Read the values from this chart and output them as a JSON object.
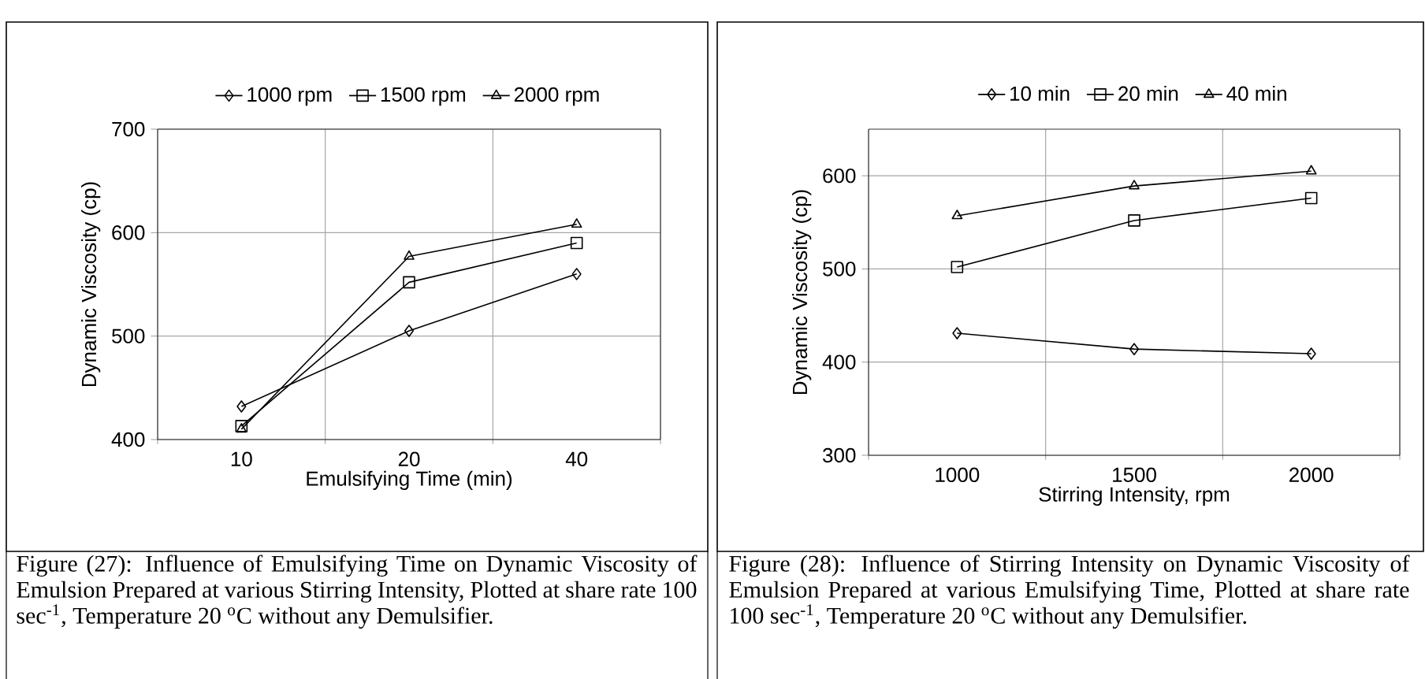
{
  "chart_data": [
    {
      "type": "line",
      "xlabel": "Emulsifying Time (min)",
      "ylabel": "Dynamic Viscosity (cp)",
      "categories": [
        "10",
        "20",
        "40"
      ],
      "ylim": [
        400,
        700
      ],
      "yticks": [
        400,
        500,
        600,
        700
      ],
      "grid": true,
      "legend": "top",
      "series": [
        {
          "name": "1000 rpm",
          "color": "#000000",
          "marker": "diamond",
          "values": [
            432,
            505,
            560
          ]
        },
        {
          "name": "1500 rpm",
          "color": "#000000",
          "marker": "square",
          "values": [
            413,
            552,
            590
          ]
        },
        {
          "name": "2000 rpm",
          "color": "#000000",
          "marker": "triangle",
          "values": [
            410,
            577,
            608
          ]
        }
      ],
      "annotations": [
        "Figure (27): Influence of Emulsifying Time on Dynamic Viscosity of Emulsion Prepared at various Stirring Intensity, Plotted at share rate 100 sec$^{-1}$, Temperature 20 $^{o}$C without any Demulsifier."
      ]
    },
    {
      "type": "line",
      "xlabel": "Stirring Intensity, rpm",
      "ylabel": "Dynamic Viscosity (cp)",
      "categories": [
        "1000",
        "1500",
        "2000"
      ],
      "ylim": [
        300,
        650
      ],
      "yticks": [
        300,
        400,
        500,
        600
      ],
      "grid": true,
      "legend": "top",
      "series": [
        {
          "name": "10 min",
          "color": "#000000",
          "marker": "diamond",
          "values": [
            431,
            414,
            409
          ]
        },
        {
          "name": "20 min",
          "color": "#000000",
          "marker": "square",
          "values": [
            502,
            552,
            576
          ]
        },
        {
          "name": "40 min",
          "color": "#000000",
          "marker": "triangle",
          "values": [
            557,
            589,
            605
          ]
        }
      ],
      "annotations": [
        "Figure (28): Influence of Stirring Intensity on Dynamic Viscosity of Emulsion Prepared at various Emulsifying Time, Plotted at share rate 100 sec$^{-1}$, Temperature 20 $^{o}$C without any Demulsifier."
      ]
    }
  ]
}
